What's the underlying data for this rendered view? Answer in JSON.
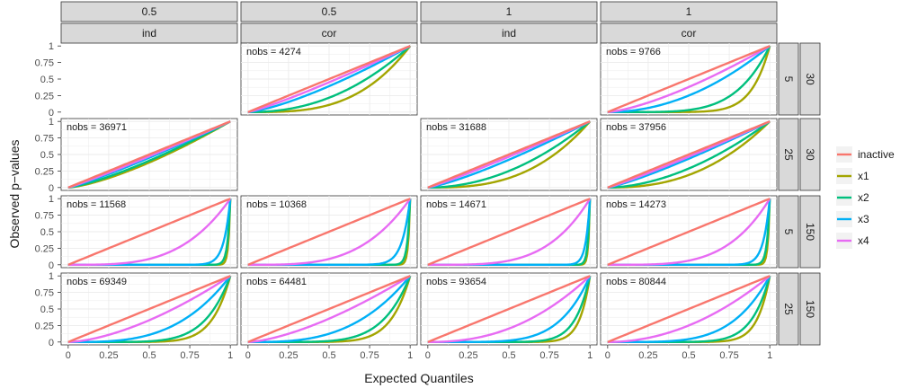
{
  "chart_data": {
    "type": "line",
    "layout": "faceted grid (4 columns x 4 rows)",
    "xlabel": "Expected Quantiles",
    "ylabel": "Observed p−values",
    "xlim": [
      0,
      1
    ],
    "ylim": [
      0,
      1
    ],
    "x_ticks": [
      "0",
      "0.25",
      "0.5",
      "0.75",
      "1"
    ],
    "y_ticks": [
      "0",
      "0.25",
      "0.5",
      "0.75",
      "1"
    ],
    "grid": true,
    "legend_position": "right",
    "column_strips": [
      {
        "top": "0.5",
        "bottom": "ind"
      },
      {
        "top": "0.5",
        "bottom": "cor"
      },
      {
        "top": "1",
        "bottom": "ind"
      },
      {
        "top": "1",
        "bottom": "cor"
      }
    ],
    "row_strips": [
      {
        "inner": "5",
        "outer": "30"
      },
      {
        "inner": "25",
        "outer": "30"
      },
      {
        "inner": "5",
        "outer": "150"
      },
      {
        "inner": "25",
        "outer": "150"
      }
    ],
    "series": [
      {
        "name": "inactive",
        "color": "#F8766D"
      },
      {
        "name": "x1",
        "color": "#A3A500"
      },
      {
        "name": "x2",
        "color": "#00BF7D"
      },
      {
        "name": "x3",
        "color": "#00B0F6"
      },
      {
        "name": "x4",
        "color": "#E76BF3"
      }
    ],
    "panels": [
      {
        "row": 0,
        "col": 1,
        "nobs": "nobs = 4274",
        "curve_power": {
          "inactive": 1.0,
          "x4": 1.15,
          "x3": 1.35,
          "x2": 2.2,
          "x1": 3.2
        }
      },
      {
        "row": 0,
        "col": 3,
        "nobs": "nobs = 9766",
        "curve_power": {
          "inactive": 1.0,
          "x4": 1.4,
          "x3": 2.0,
          "x2": 5.0,
          "x1": 9.0
        }
      },
      {
        "row": 1,
        "col": 0,
        "nobs": "nobs = 36971",
        "curve_power": {
          "inactive": 1.0,
          "x4": 1.08,
          "x3": 1.15,
          "x2": 1.3,
          "x1": 1.4
        }
      },
      {
        "row": 1,
        "col": 2,
        "nobs": "nobs = 31688",
        "curve_power": {
          "inactive": 1.0,
          "x4": 1.1,
          "x3": 1.25,
          "x2": 2.0,
          "x1": 2.8
        }
      },
      {
        "row": 1,
        "col": 3,
        "nobs": "nobs = 37956",
        "curve_power": {
          "inactive": 1.0,
          "x4": 1.1,
          "x3": 1.2,
          "x2": 1.8,
          "x1": 2.4
        }
      },
      {
        "row": 2,
        "col": 0,
        "nobs": "nobs = 11568",
        "curve_power": {
          "inactive": 1.0,
          "x4": 3.5,
          "x3": 25,
          "x2": 60,
          "x1": 90
        }
      },
      {
        "row": 2,
        "col": 1,
        "nobs": "nobs = 10368",
        "curve_power": {
          "inactive": 1.0,
          "x4": 3.5,
          "x3": 20,
          "x2": 60,
          "x1": 90
        }
      },
      {
        "row": 2,
        "col": 2,
        "nobs": "nobs = 14671",
        "curve_power": {
          "inactive": 1.0,
          "x4": 4.0,
          "x3": 40,
          "x2": 80,
          "x1": 110
        }
      },
      {
        "row": 2,
        "col": 3,
        "nobs": "nobs = 14273",
        "curve_power": {
          "inactive": 1.0,
          "x4": 4.0,
          "x3": 25,
          "x2": 60,
          "x1": 90
        }
      },
      {
        "row": 3,
        "col": 0,
        "nobs": "nobs = 69349",
        "curve_power": {
          "inactive": 1.0,
          "x4": 1.6,
          "x3": 3.2,
          "x2": 6.5,
          "x1": 9.0
        }
      },
      {
        "row": 3,
        "col": 1,
        "nobs": "nobs = 64481",
        "curve_power": {
          "inactive": 1.0,
          "x4": 1.5,
          "x3": 3.0,
          "x2": 6.0,
          "x1": 8.5
        }
      },
      {
        "row": 3,
        "col": 2,
        "nobs": "nobs = 93654",
        "curve_power": {
          "inactive": 1.0,
          "x4": 2.3,
          "x3": 5.5,
          "x2": 11,
          "x1": 16
        }
      },
      {
        "row": 3,
        "col": 3,
        "nobs": "nobs = 80844",
        "curve_power": {
          "inactive": 1.0,
          "x4": 2.0,
          "x3": 4.5,
          "x2": 9.0,
          "x1": 13
        }
      }
    ]
  }
}
